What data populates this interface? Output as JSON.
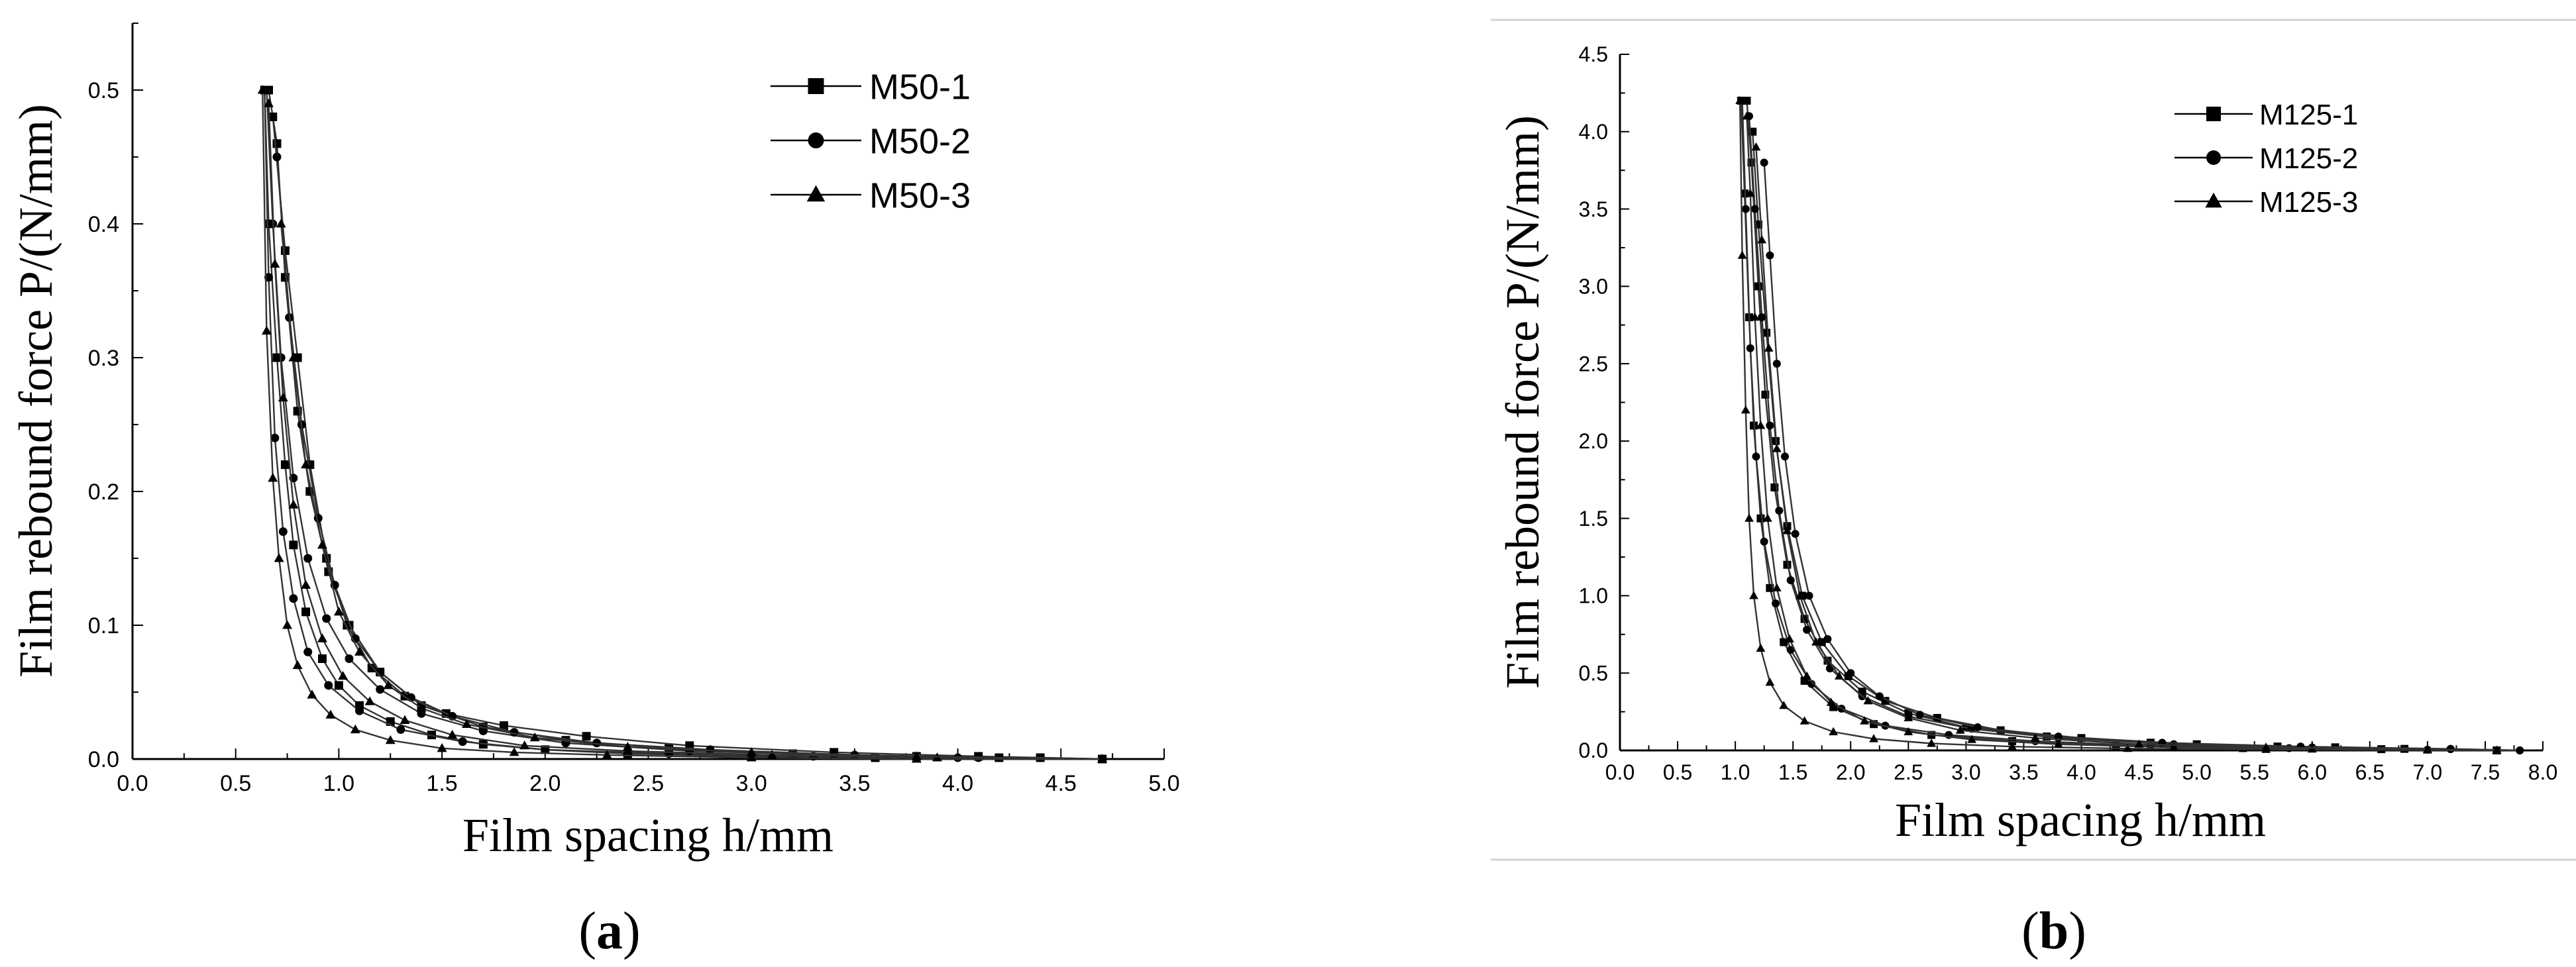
{
  "chart_data": [
    {
      "type": "line",
      "panel_label": "a",
      "xlabel": "Film spacing h/mm",
      "ylabel": "Film rebound force P/(N/mm)",
      "xlim": [
        0,
        5
      ],
      "ylim": [
        0,
        0.55
      ],
      "xticks": [
        "0.0",
        "0.5",
        "1.0",
        "1.5",
        "2.0",
        "2.5",
        "3.0",
        "3.5",
        "4.0",
        "4.5",
        "5.0"
      ],
      "yticks": [
        "0.0",
        "0.1",
        "0.2",
        "0.3",
        "0.4",
        "0.5"
      ],
      "grid": false,
      "legend_position": "top-right",
      "series": [
        {
          "name": "M50-1",
          "marker": "square",
          "curves": [
            {
              "x": [
                0.64,
                0.66,
                0.7,
                0.74,
                0.78,
                0.84,
                0.92,
                1.0,
                1.1,
                1.25,
                1.45,
                1.7,
                2.0,
                2.4,
                3.0,
                3.6,
                4.2,
                4.7
              ],
              "y": [
                0.5,
                0.4,
                0.3,
                0.22,
                0.16,
                0.11,
                0.075,
                0.055,
                0.04,
                0.028,
                0.018,
                0.011,
                0.007,
                0.004,
                0.002,
                0.001,
                0.001,
                0.0
              ]
            },
            {
              "x": [
                0.66,
                0.7,
                0.74,
                0.8,
                0.86,
                0.95,
                1.05,
                1.2,
                1.4,
                1.7,
                2.1,
                2.6,
                3.2,
                3.8,
                4.4,
                4.7
              ],
              "y": [
                0.5,
                0.46,
                0.36,
                0.26,
                0.2,
                0.14,
                0.1,
                0.065,
                0.04,
                0.024,
                0.014,
                0.008,
                0.004,
                0.002,
                0.001,
                0.0
              ]
            },
            {
              "x": [
                0.68,
                0.74,
                0.8,
                0.86,
                0.94,
                1.04,
                1.16,
                1.32,
                1.52,
                1.8,
                2.2,
                2.7,
                3.4,
                4.1,
                4.7
              ],
              "y": [
                0.48,
                0.38,
                0.3,
                0.22,
                0.15,
                0.1,
                0.068,
                0.047,
                0.034,
                0.025,
                0.017,
                0.01,
                0.005,
                0.002,
                0.0
              ]
            }
          ]
        },
        {
          "name": "M50-2",
          "marker": "circle",
          "curves": [
            {
              "x": [
                0.64,
                0.66,
                0.69,
                0.73,
                0.78,
                0.85,
                0.95,
                1.1,
                1.3,
                1.6,
                2.0,
                2.6,
                3.3,
                4.0,
                4.7
              ],
              "y": [
                0.5,
                0.36,
                0.24,
                0.17,
                0.12,
                0.08,
                0.055,
                0.036,
                0.022,
                0.013,
                0.007,
                0.004,
                0.002,
                0.001,
                0.0
              ]
            },
            {
              "x": [
                0.65,
                0.68,
                0.72,
                0.78,
                0.85,
                0.94,
                1.05,
                1.2,
                1.4,
                1.7,
                2.1,
                2.7,
                3.4,
                4.1,
                4.7
              ],
              "y": [
                0.5,
                0.4,
                0.3,
                0.21,
                0.15,
                0.105,
                0.075,
                0.052,
                0.034,
                0.021,
                0.012,
                0.006,
                0.003,
                0.001,
                0.0
              ]
            },
            {
              "x": [
                0.7,
                0.76,
                0.82,
                0.9,
                0.98,
                1.08,
                1.2,
                1.35,
                1.55,
                1.85,
                2.25,
                2.8,
                3.5,
                4.2,
                4.7
              ],
              "y": [
                0.45,
                0.33,
                0.25,
                0.18,
                0.13,
                0.09,
                0.065,
                0.046,
                0.032,
                0.02,
                0.012,
                0.007,
                0.003,
                0.001,
                0.0
              ]
            }
          ]
        },
        {
          "name": "M50-3",
          "marker": "triangle",
          "curves": [
            {
              "x": [
                0.63,
                0.65,
                0.68,
                0.71,
                0.75,
                0.8,
                0.87,
                0.96,
                1.08,
                1.25,
                1.5,
                1.85,
                2.3,
                3.0,
                3.8,
                4.7
              ],
              "y": [
                0.5,
                0.32,
                0.21,
                0.15,
                0.1,
                0.07,
                0.048,
                0.033,
                0.022,
                0.014,
                0.008,
                0.005,
                0.003,
                0.001,
                0.0,
                0.0
              ]
            },
            {
              "x": [
                0.66,
                0.69,
                0.73,
                0.78,
                0.84,
                0.92,
                1.02,
                1.15,
                1.32,
                1.55,
                1.9,
                2.4,
                3.1,
                3.9,
                4.7
              ],
              "y": [
                0.49,
                0.37,
                0.27,
                0.19,
                0.13,
                0.09,
                0.062,
                0.043,
                0.029,
                0.018,
                0.01,
                0.006,
                0.003,
                0.001,
                0.0
              ]
            },
            {
              "x": [
                0.72,
                0.78,
                0.84,
                0.92,
                1.0,
                1.1,
                1.24,
                1.4,
                1.62,
                1.95,
                2.4,
                3.0,
                3.8,
                4.7
              ],
              "y": [
                0.4,
                0.3,
                0.22,
                0.16,
                0.11,
                0.08,
                0.055,
                0.038,
                0.026,
                0.016,
                0.009,
                0.005,
                0.002,
                0.0
              ]
            }
          ]
        }
      ]
    },
    {
      "type": "line",
      "panel_label": "b",
      "xlabel": "Film spacing h/mm",
      "ylabel": "Film rebound force P/(N/mm)",
      "xlim": [
        0,
        8
      ],
      "ylim": [
        0,
        4.5
      ],
      "xticks": [
        "0.0",
        "0.5",
        "1.0",
        "1.5",
        "2.0",
        "2.5",
        "3.0",
        "3.5",
        "4.0",
        "4.5",
        "5.0",
        "5.5",
        "6.0",
        "6.5",
        "7.0",
        "7.5",
        "8.0"
      ],
      "yticks": [
        "0.0",
        "0.5",
        "1.0",
        "1.5",
        "2.0",
        "2.5",
        "3.0",
        "3.5",
        "4.0",
        "4.5"
      ],
      "grid": false,
      "legend_position": "top-right",
      "series": [
        {
          "name": "M125-1",
          "marker": "square",
          "curves": [
            {
              "x": [
                1.05,
                1.08,
                1.12,
                1.16,
                1.22,
                1.3,
                1.42,
                1.6,
                1.85,
                2.2,
                2.7,
                3.4,
                4.3,
                5.4,
                6.6,
                7.6
              ],
              "y": [
                4.2,
                3.6,
                2.8,
                2.1,
                1.5,
                1.05,
                0.7,
                0.45,
                0.28,
                0.17,
                0.1,
                0.06,
                0.03,
                0.015,
                0.008,
                0.0
              ]
            },
            {
              "x": [
                1.1,
                1.14,
                1.2,
                1.26,
                1.34,
                1.45,
                1.6,
                1.8,
                2.1,
                2.5,
                3.0,
                3.7,
                4.6,
                5.7,
                6.8,
                7.6
              ],
              "y": [
                4.2,
                3.8,
                3.0,
                2.3,
                1.7,
                1.2,
                0.85,
                0.58,
                0.38,
                0.24,
                0.15,
                0.09,
                0.05,
                0.025,
                0.01,
                0.0
              ]
            },
            {
              "x": [
                1.15,
                1.2,
                1.27,
                1.35,
                1.45,
                1.58,
                1.75,
                1.98,
                2.3,
                2.75,
                3.3,
                4.0,
                5.0,
                6.2,
                7.6
              ],
              "y": [
                4.0,
                3.4,
                2.7,
                2.0,
                1.45,
                1.0,
                0.7,
                0.48,
                0.32,
                0.21,
                0.13,
                0.08,
                0.04,
                0.02,
                0.0
              ]
            }
          ]
        },
        {
          "name": "M125-2",
          "marker": "circle",
          "curves": [
            {
              "x": [
                1.06,
                1.09,
                1.13,
                1.18,
                1.25,
                1.35,
                1.48,
                1.66,
                1.92,
                2.3,
                2.85,
                3.6,
                4.6,
                5.8,
                7.0,
                7.8
              ],
              "y": [
                4.2,
                3.5,
                2.6,
                1.9,
                1.35,
                0.95,
                0.65,
                0.43,
                0.27,
                0.16,
                0.1,
                0.06,
                0.03,
                0.015,
                0.005,
                0.0
              ]
            },
            {
              "x": [
                1.12,
                1.17,
                1.23,
                1.3,
                1.38,
                1.48,
                1.62,
                1.82,
                2.1,
                2.5,
                3.05,
                3.8,
                4.8,
                6.0,
                7.2,
                7.8
              ],
              "y": [
                4.1,
                3.5,
                2.8,
                2.1,
                1.55,
                1.1,
                0.78,
                0.53,
                0.35,
                0.22,
                0.14,
                0.08,
                0.04,
                0.02,
                0.008,
                0.0
              ]
            },
            {
              "x": [
                1.25,
                1.3,
                1.36,
                1.43,
                1.52,
                1.64,
                1.8,
                2.0,
                2.25,
                2.6,
                3.1,
                3.8,
                4.7,
                5.9,
                7.2,
                7.8
              ],
              "y": [
                3.8,
                3.2,
                2.5,
                1.9,
                1.4,
                1.0,
                0.72,
                0.5,
                0.35,
                0.23,
                0.15,
                0.09,
                0.05,
                0.025,
                0.01,
                0.0
              ]
            }
          ]
        },
        {
          "name": "M125-3",
          "marker": "triangle",
          "curves": [
            {
              "x": [
                1.04,
                1.06,
                1.09,
                1.12,
                1.16,
                1.22,
                1.3,
                1.42,
                1.6,
                1.85,
                2.2,
                2.7,
                3.4,
                4.4,
                5.6,
                7.0,
                7.6
              ],
              "y": [
                4.2,
                3.2,
                2.2,
                1.5,
                1.0,
                0.66,
                0.44,
                0.29,
                0.19,
                0.12,
                0.075,
                0.045,
                0.025,
                0.012,
                0.006,
                0.002,
                0.0
              ]
            },
            {
              "x": [
                1.1,
                1.13,
                1.17,
                1.22,
                1.28,
                1.36,
                1.47,
                1.62,
                1.83,
                2.12,
                2.5,
                3.05,
                3.8,
                4.8,
                6.0,
                7.6
              ],
              "y": [
                4.1,
                3.6,
                2.8,
                2.1,
                1.5,
                1.05,
                0.72,
                0.48,
                0.31,
                0.19,
                0.12,
                0.07,
                0.04,
                0.02,
                0.008,
                0.0
              ]
            },
            {
              "x": [
                1.18,
                1.23,
                1.29,
                1.36,
                1.45,
                1.56,
                1.7,
                1.9,
                2.15,
                2.5,
                2.95,
                3.6,
                4.5,
                5.6,
                7.0,
                7.6
              ],
              "y": [
                3.9,
                3.3,
                2.6,
                1.95,
                1.42,
                1.0,
                0.7,
                0.48,
                0.32,
                0.21,
                0.13,
                0.08,
                0.04,
                0.02,
                0.006,
                0.0
              ]
            }
          ]
        }
      ]
    }
  ]
}
